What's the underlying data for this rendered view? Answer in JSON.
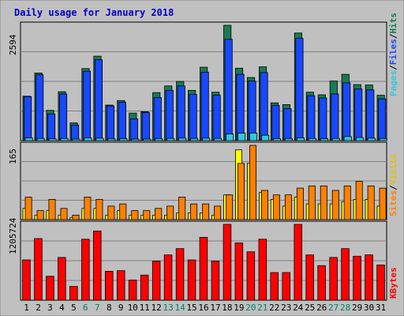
{
  "chart_data": [
    {
      "type": "bar",
      "title": "Daily usage for January 2018",
      "panel": "top",
      "y_max_label": "2594",
      "ylim": [
        0,
        2594
      ],
      "legend_text": [
        "Pages",
        "Files",
        "Hits"
      ],
      "categories": [
        "1",
        "2",
        "3",
        "4",
        "5",
        "6",
        "7",
        "8",
        "9",
        "10",
        "11",
        "12",
        "13",
        "14",
        "15",
        "16",
        "17",
        "18",
        "19",
        "20",
        "21",
        "22",
        "23",
        "24",
        "25",
        "26",
        "27",
        "28",
        "29",
        "30",
        "31"
      ],
      "series": [
        {
          "name": "Hits",
          "color": "#1a7a52",
          "values": [
            1000,
            1520,
            680,
            1100,
            400,
            1620,
            1900,
            800,
            900,
            620,
            650,
            1080,
            1230,
            1330,
            1130,
            1650,
            1090,
            2594,
            1630,
            1420,
            1660,
            850,
            810,
            2420,
            1090,
            1030,
            1340,
            1490,
            1260,
            1250,
            1020
          ]
        },
        {
          "name": "Files",
          "color": "#1848ff",
          "values": [
            990,
            1480,
            600,
            1050,
            350,
            1560,
            1820,
            780,
            860,
            490,
            630,
            970,
            1130,
            1230,
            1040,
            1540,
            1020,
            2280,
            1490,
            1340,
            1530,
            790,
            720,
            2300,
            1010,
            960,
            1050,
            1300,
            1160,
            1140,
            940
          ]
        },
        {
          "name": "Pages",
          "color": "#30c8e0",
          "values": [
            60,
            50,
            40,
            50,
            35,
            60,
            55,
            40,
            45,
            35,
            35,
            45,
            50,
            55,
            50,
            55,
            50,
            150,
            170,
            170,
            120,
            45,
            45,
            60,
            50,
            45,
            50,
            90,
            70,
            55,
            45
          ]
        }
      ]
    },
    {
      "type": "bar",
      "panel": "middle",
      "y_max_label": "165",
      "ylim": [
        0,
        165
      ],
      "legend_text": [
        "Sites",
        "Visits"
      ],
      "categories": [
        "1",
        "2",
        "3",
        "4",
        "5",
        "6",
        "7",
        "8",
        "9",
        "10",
        "11",
        "12",
        "13",
        "14",
        "15",
        "16",
        "17",
        "18",
        "19",
        "20",
        "21",
        "22",
        "23",
        "24",
        "25",
        "26",
        "27",
        "28",
        "29",
        "30",
        "31"
      ],
      "series": [
        {
          "name": "Visits",
          "color": "#ffff00",
          "values": [
            25,
            10,
            20,
            10,
            5,
            25,
            25,
            10,
            20,
            10,
            10,
            10,
            10,
            15,
            15,
            15,
            10,
            55,
            155,
            125,
            60,
            45,
            30,
            50,
            35,
            35,
            35,
            40,
            45,
            45,
            30
          ]
        },
        {
          "name": "Sites",
          "color": "#ff8000",
          "values": [
            50,
            20,
            45,
            25,
            10,
            50,
            45,
            30,
            35,
            20,
            20,
            25,
            30,
            50,
            35,
            35,
            30,
            55,
            125,
            165,
            65,
            55,
            55,
            70,
            75,
            75,
            65,
            75,
            85,
            75,
            70
          ]
        }
      ]
    },
    {
      "type": "bar",
      "panel": "bottom",
      "y_max_label": "1205724",
      "ylim": [
        0,
        1205724
      ],
      "legend_text": [
        "KBytes"
      ],
      "categories": [
        "1",
        "2",
        "3",
        "4",
        "5",
        "6",
        "7",
        "8",
        "9",
        "10",
        "11",
        "12",
        "13",
        "14",
        "15",
        "16",
        "17",
        "18",
        "19",
        "20",
        "21",
        "22",
        "23",
        "24",
        "25",
        "26",
        "27",
        "28",
        "29",
        "30",
        "31"
      ],
      "weekend_days": [
        "6",
        "7",
        "13",
        "14",
        "20",
        "21",
        "27",
        "28"
      ],
      "series": [
        {
          "name": "KBytes",
          "color": "#ff0000",
          "values": [
            640000,
            980000,
            380000,
            680000,
            220000,
            970000,
            1100000,
            460000,
            470000,
            320000,
            400000,
            620000,
            720000,
            820000,
            640000,
            1000000,
            620000,
            1205724,
            910000,
            770000,
            970000,
            440000,
            440000,
            1205724,
            720000,
            550000,
            680000,
            820000,
            700000,
            720000,
            560000
          ]
        }
      ]
    }
  ],
  "colors": {
    "background": "#c0c0c0",
    "frame": "#ffffff",
    "title_color": "#0000c8",
    "weekday_label": "#000000",
    "weekend_label": "#00806a"
  }
}
